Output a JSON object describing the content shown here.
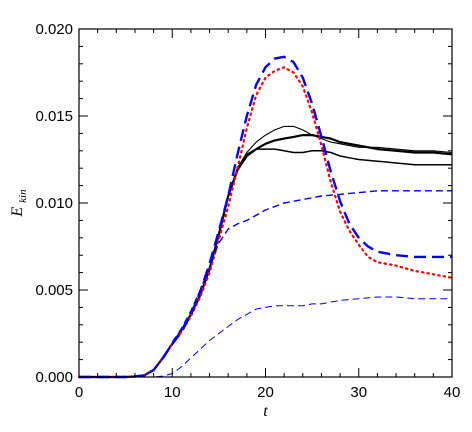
{
  "chart_data": {
    "type": "line",
    "title": "",
    "xlabel": "t",
    "ylabel": {
      "main": "E",
      "sub": "kin"
    },
    "xlim": [
      0,
      40
    ],
    "ylim": [
      0,
      0.02
    ],
    "xticks": [
      "0",
      "10",
      "20",
      "30",
      "40"
    ],
    "yticks": [
      "0.000",
      "0.005",
      "0.010",
      "0.015",
      "0.020"
    ],
    "grid": false,
    "series": [
      {
        "color": "#000000",
        "style": "solid",
        "width": 2.2,
        "x": [
          0,
          5,
          6,
          7,
          8,
          9,
          10,
          11,
          12,
          13,
          14,
          15,
          16,
          17,
          18,
          19,
          20,
          21,
          22,
          23,
          24,
          25,
          26,
          27,
          28,
          29,
          30,
          32,
          34,
          36,
          38,
          40
        ],
        "y": [
          0,
          0,
          3e-05,
          0.0001,
          0.0004,
          0.0011,
          0.0019,
          0.0027,
          0.0036,
          0.0047,
          0.0062,
          0.0082,
          0.0104,
          0.0119,
          0.0127,
          0.0131,
          0.0134,
          0.0136,
          0.0137,
          0.0138,
          0.0139,
          0.0139,
          0.0138,
          0.0137,
          0.0135,
          0.0134,
          0.0133,
          0.0131,
          0.013,
          0.0129,
          0.0129,
          0.0128
        ]
      },
      {
        "color": "#000000",
        "style": "solid",
        "width": 1.1,
        "x": [
          0,
          5,
          6,
          7,
          8,
          9,
          10,
          11,
          12,
          13,
          14,
          15,
          16,
          17,
          18,
          19,
          20,
          21,
          22,
          23,
          24,
          25,
          26,
          27,
          28,
          29,
          30,
          32,
          34,
          36,
          38,
          40
        ],
        "y": [
          0,
          0,
          3e-05,
          0.0001,
          0.0004,
          0.0011,
          0.0019,
          0.0027,
          0.0036,
          0.0047,
          0.0062,
          0.0082,
          0.0104,
          0.012,
          0.0129,
          0.0135,
          0.0139,
          0.0142,
          0.0144,
          0.0144,
          0.0142,
          0.0139,
          0.0137,
          0.0135,
          0.0134,
          0.0133,
          0.0132,
          0.0132,
          0.0131,
          0.013,
          0.013,
          0.0129
        ]
      },
      {
        "color": "#000000",
        "style": "solid",
        "width": 1.5,
        "x": [
          0,
          5,
          6,
          7,
          8,
          9,
          10,
          11,
          12,
          13,
          14,
          15,
          16,
          17,
          18,
          19,
          20,
          21,
          22,
          23,
          24,
          25,
          26,
          27,
          28,
          29,
          30,
          32,
          34,
          36,
          38,
          40
        ],
        "y": [
          0,
          0,
          3e-05,
          0.0001,
          0.0004,
          0.0011,
          0.0019,
          0.0027,
          0.0036,
          0.0047,
          0.0062,
          0.0082,
          0.0104,
          0.012,
          0.0128,
          0.0131,
          0.0131,
          0.0131,
          0.013,
          0.0129,
          0.0129,
          0.013,
          0.013,
          0.0129,
          0.0127,
          0.0126,
          0.0125,
          0.0124,
          0.0123,
          0.0122,
          0.0122,
          0.0122
        ]
      },
      {
        "color": "#ff0000",
        "style": "dotted",
        "width": 2.2,
        "x": [
          0,
          5,
          6,
          7,
          8,
          9,
          10,
          11,
          12,
          13,
          14,
          15,
          16,
          17,
          18,
          19,
          20,
          21,
          22,
          23,
          24,
          25,
          26,
          27,
          28,
          29,
          30,
          31,
          32,
          34,
          36,
          38,
          40
        ],
        "y": [
          0,
          0,
          3e-05,
          0.0001,
          0.0004,
          0.0011,
          0.0019,
          0.0026,
          0.0035,
          0.0046,
          0.006,
          0.0079,
          0.0098,
          0.012,
          0.0143,
          0.0162,
          0.0172,
          0.0176,
          0.0178,
          0.0175,
          0.0167,
          0.0152,
          0.0133,
          0.0112,
          0.0095,
          0.0084,
          0.0076,
          0.0069,
          0.0066,
          0.0064,
          0.0061,
          0.0059,
          0.0057
        ]
      },
      {
        "color": "#0000ff",
        "style": "dashed-long",
        "width": 2.4,
        "x": [
          0,
          5,
          6,
          7,
          8,
          9,
          10,
          11,
          12,
          13,
          14,
          15,
          16,
          17,
          18,
          19,
          20,
          21,
          22,
          23,
          24,
          25,
          26,
          27,
          28,
          29,
          30,
          31,
          32,
          34,
          36,
          38,
          40
        ],
        "y": [
          0,
          0,
          3e-05,
          0.0001,
          0.0004,
          0.0011,
          0.0019,
          0.0026,
          0.0036,
          0.0049,
          0.0065,
          0.0084,
          0.0104,
          0.0128,
          0.015,
          0.0168,
          0.0178,
          0.0183,
          0.0184,
          0.0181,
          0.0172,
          0.0157,
          0.0138,
          0.0118,
          0.0101,
          0.0088,
          0.008,
          0.0075,
          0.0072,
          0.007,
          0.0069,
          0.0069,
          0.0069
        ]
      },
      {
        "color": "#0000ff",
        "style": "dashed",
        "width": 1.4,
        "x": [
          0,
          5,
          6,
          7,
          8,
          9,
          10,
          11,
          12,
          13,
          14,
          15,
          16,
          17,
          18,
          19,
          20,
          22,
          24,
          25,
          26,
          28,
          30,
          32,
          34,
          36,
          38,
          40
        ],
        "y": [
          0,
          0,
          2e-05,
          8e-05,
          0.0004,
          0.0011,
          0.002,
          0.0028,
          0.0038,
          0.005,
          0.0063,
          0.0077,
          0.0085,
          0.0088,
          0.009,
          0.0093,
          0.0096,
          0.01,
          0.0102,
          0.0103,
          0.0104,
          0.0105,
          0.0106,
          0.0107,
          0.0107,
          0.0107,
          0.0107,
          0.0107
        ]
      },
      {
        "color": "#0000ff",
        "style": "dashed",
        "width": 1.0,
        "x": [
          0,
          8,
          9,
          10,
          11,
          12,
          13,
          14,
          15,
          16,
          17,
          18,
          19,
          20,
          21,
          22,
          23,
          24,
          25,
          26,
          28,
          30,
          32,
          34,
          36,
          38,
          40
        ],
        "y": [
          0,
          0,
          5e-05,
          0.0002,
          0.0006,
          0.0011,
          0.0016,
          0.0021,
          0.0025,
          0.0029,
          0.0033,
          0.0036,
          0.0039,
          0.004,
          0.0041,
          0.0041,
          0.0041,
          0.0041,
          0.0042,
          0.0042,
          0.0044,
          0.0045,
          0.0046,
          0.0046,
          0.0045,
          0.0045,
          0.0045
        ]
      }
    ]
  }
}
